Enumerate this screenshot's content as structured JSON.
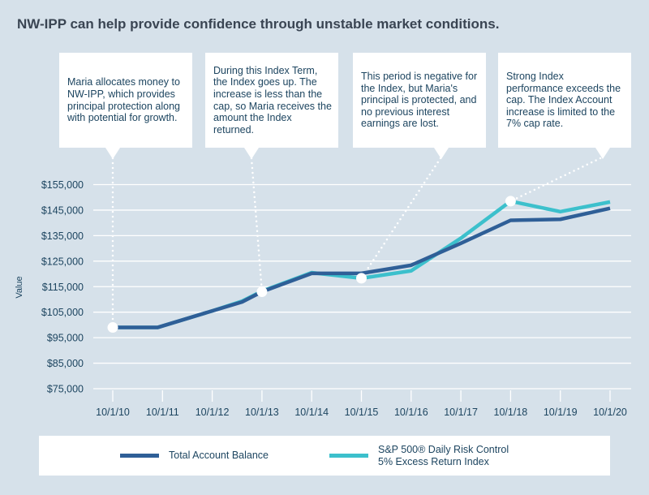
{
  "title": "NW-IPP can help provide confidence through unstable market conditions.",
  "callouts": [
    {
      "text": "Maria allocates money to NW-IPP, which provides principal protection along with potential for growth."
    },
    {
      "text": "During this Index Term, the Index goes up. The increase is less than the cap, so Maria receives the amount the Index returned."
    },
    {
      "text": "This period is negative for the Index, but Maria's principal is protected, and no previous interest earnings are lost."
    },
    {
      "text": "Strong Index performance exceeds the cap. The Index Account increase is limited to the 7% cap rate."
    }
  ],
  "chart_data": {
    "type": "line",
    "title": "NW-IPP can help provide confidence through unstable market conditions.",
    "xlabel": "",
    "ylabel": "Value",
    "ylim": [
      75000,
      155000
    ],
    "yticks": [
      75000,
      85000,
      95000,
      105000,
      115000,
      125000,
      135000,
      145000,
      155000
    ],
    "ytick_labels": [
      "$75,000",
      "$85,000",
      "$95,000",
      "$105,000",
      "$115,000",
      "$125,000",
      "$135,000",
      "$145,000",
      "$155,000"
    ],
    "x_tick_labels": [
      "10/1/10",
      "10/1/11",
      "10/1/12",
      "10/1/13",
      "10/1/14",
      "10/1/15",
      "10/1/16",
      "10/1/17",
      "10/1/18",
      "10/1/19",
      "10/1/20"
    ],
    "grid": true,
    "legend_position": "bottom",
    "series": [
      {
        "name": "Total Account Balance",
        "color": "#2f5f97",
        "x": [
          0,
          0.9,
          2.0,
          2.6,
          3.0,
          4.0,
          5.0,
          6.0,
          7.0,
          8.0,
          9.0,
          10.0
        ],
        "values": [
          99000,
          99000,
          105500,
          109000,
          113000,
          120200,
          120200,
          123400,
          132000,
          141000,
          141400,
          145700
        ]
      },
      {
        "name": "S&P 500® Daily Risk Control 5% Excess Return Index",
        "name_line1": "S&P 500® Daily Risk Control",
        "name_line2": "5% Excess Return Index",
        "color": "#3cc0cc",
        "x": [
          0,
          0.9,
          2.0,
          2.6,
          3.0,
          4.0,
          5.0,
          6.0,
          7.0,
          8.0,
          9.0,
          10.0
        ],
        "values": [
          99000,
          99000,
          105500,
          109300,
          113200,
          120500,
          118300,
          121200,
          134000,
          148500,
          144400,
          148200
        ]
      }
    ],
    "highlight_points": [
      {
        "series": 0,
        "x": 0,
        "value": 99000
      },
      {
        "series": 0,
        "x": 3.0,
        "value": 113000
      },
      {
        "series": 1,
        "x": 5.0,
        "value": 118300
      },
      {
        "series": 1,
        "x": 8.0,
        "value": 148500
      }
    ]
  }
}
